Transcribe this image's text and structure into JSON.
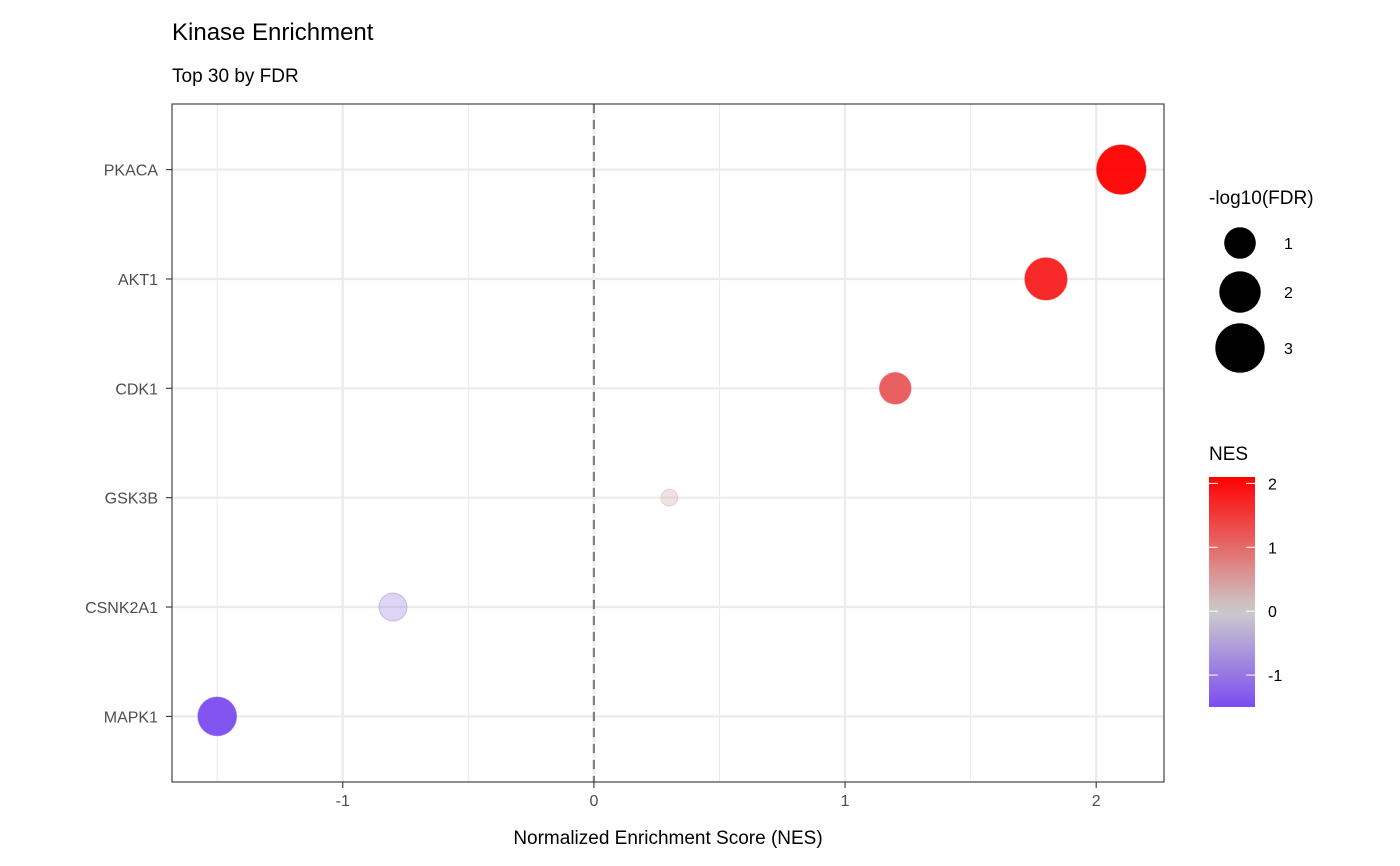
{
  "chart_data": {
    "type": "scatter",
    "title": "Kinase Enrichment",
    "subtitle": "Top 30 by FDR",
    "xlabel": "Normalized Enrichment Score (NES)",
    "ylabel": "",
    "xlim": [
      -1.68,
      2.27
    ],
    "xticks": [
      -1,
      0,
      1,
      2
    ],
    "xtick_labels": [
      "-1",
      "0",
      "1",
      "2"
    ],
    "reference_line": {
      "x": 0,
      "style": "dashed"
    },
    "grid": true,
    "categories": [
      "PKACA",
      "AKT1",
      "CDK1",
      "GSK3B",
      "CSNK2A1",
      "MAPK1"
    ],
    "points": [
      {
        "kinase": "PKACA",
        "nes": 2.1,
        "neg_log10_fdr": 3.0
      },
      {
        "kinase": "AKT1",
        "nes": 1.8,
        "neg_log10_fdr": 2.1
      },
      {
        "kinase": "CDK1",
        "nes": 1.2,
        "neg_log10_fdr": 1.0
      },
      {
        "kinase": "GSK3B",
        "nes": 0.3,
        "neg_log10_fdr": 0.0
      },
      {
        "kinase": "CSNK2A1",
        "nes": -0.8,
        "neg_log10_fdr": 0.7
      },
      {
        "kinase": "MAPK1",
        "nes": -1.5,
        "neg_log10_fdr": 1.7
      }
    ],
    "size_legend": {
      "title": "-log10(FDR)",
      "breaks": [
        1,
        2,
        3
      ],
      "labels": [
        "1",
        "2",
        "3"
      ],
      "placement": "right"
    },
    "color_legend": {
      "title": "NES",
      "breaks": [
        2,
        1,
        0,
        -1
      ],
      "labels": [
        "2",
        "1",
        "0",
        "-1"
      ],
      "limits": [
        -1.5,
        2.1
      ],
      "low": "#7B4CF0",
      "mid": "#CCCCCC",
      "high": "#FF0000",
      "placement": "right"
    }
  }
}
